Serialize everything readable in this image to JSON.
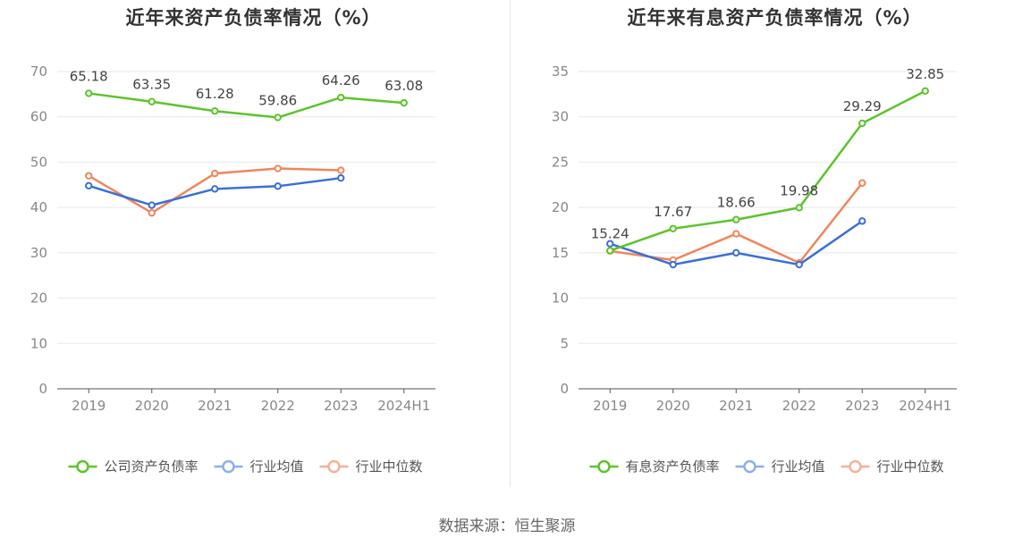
{
  "source_text": "数据来源：恒生聚源",
  "chart_data": [
    {
      "type": "line",
      "title": "近年来资产负债率情况（%）",
      "categories": [
        "2019",
        "2020",
        "2021",
        "2022",
        "2023",
        "2024H1"
      ],
      "ylim": [
        0,
        70
      ],
      "yticks": [
        0,
        10,
        20,
        30,
        40,
        50,
        60,
        70
      ],
      "grid": true,
      "legend_position": "bottom",
      "series": [
        {
          "name": "公司资产负债率",
          "color": "#5cc42a",
          "labels": true,
          "values": [
            65.18,
            63.35,
            61.28,
            59.86,
            64.26,
            63.08
          ],
          "value_labels": [
            "65.18",
            "63.35",
            "61.28",
            "59.86",
            "64.26",
            "63.08"
          ]
        },
        {
          "name": "行业均值",
          "color": "#3a6fd8",
          "legend_color": "#8ab0ef",
          "labels": false,
          "values": [
            44.8,
            40.5,
            44.1,
            44.7,
            46.5,
            null
          ]
        },
        {
          "name": "行业中位数",
          "color": "#f0865a",
          "legend_color": "#f6b196",
          "labels": false,
          "values": [
            47.0,
            38.8,
            47.5,
            48.6,
            48.2,
            null
          ]
        }
      ]
    },
    {
      "type": "line",
      "title": "近年来有息资产负债率情况（%）",
      "categories": [
        "2019",
        "2020",
        "2021",
        "2022",
        "2023",
        "2024H1"
      ],
      "ylim": [
        0,
        35
      ],
      "yticks": [
        0,
        5,
        10,
        15,
        20,
        25,
        30,
        35
      ],
      "grid": true,
      "legend_position": "bottom",
      "series": [
        {
          "name": "有息资产负债率",
          "color": "#5cc42a",
          "labels": true,
          "values": [
            15.24,
            17.67,
            18.66,
            19.98,
            29.29,
            32.85
          ],
          "value_labels": [
            "15.24",
            "17.67",
            "18.66",
            "19.98",
            "29.29",
            "32.85"
          ]
        },
        {
          "name": "行业均值",
          "color": "#3a6fd8",
          "legend_color": "#8ab0ef",
          "labels": false,
          "values": [
            16.0,
            13.7,
            15.0,
            13.7,
            18.5,
            null
          ]
        },
        {
          "name": "行业中位数",
          "color": "#f0865a",
          "legend_color": "#f6b196",
          "labels": false,
          "values": [
            15.2,
            14.2,
            17.1,
            13.9,
            22.7,
            null
          ]
        }
      ]
    }
  ]
}
